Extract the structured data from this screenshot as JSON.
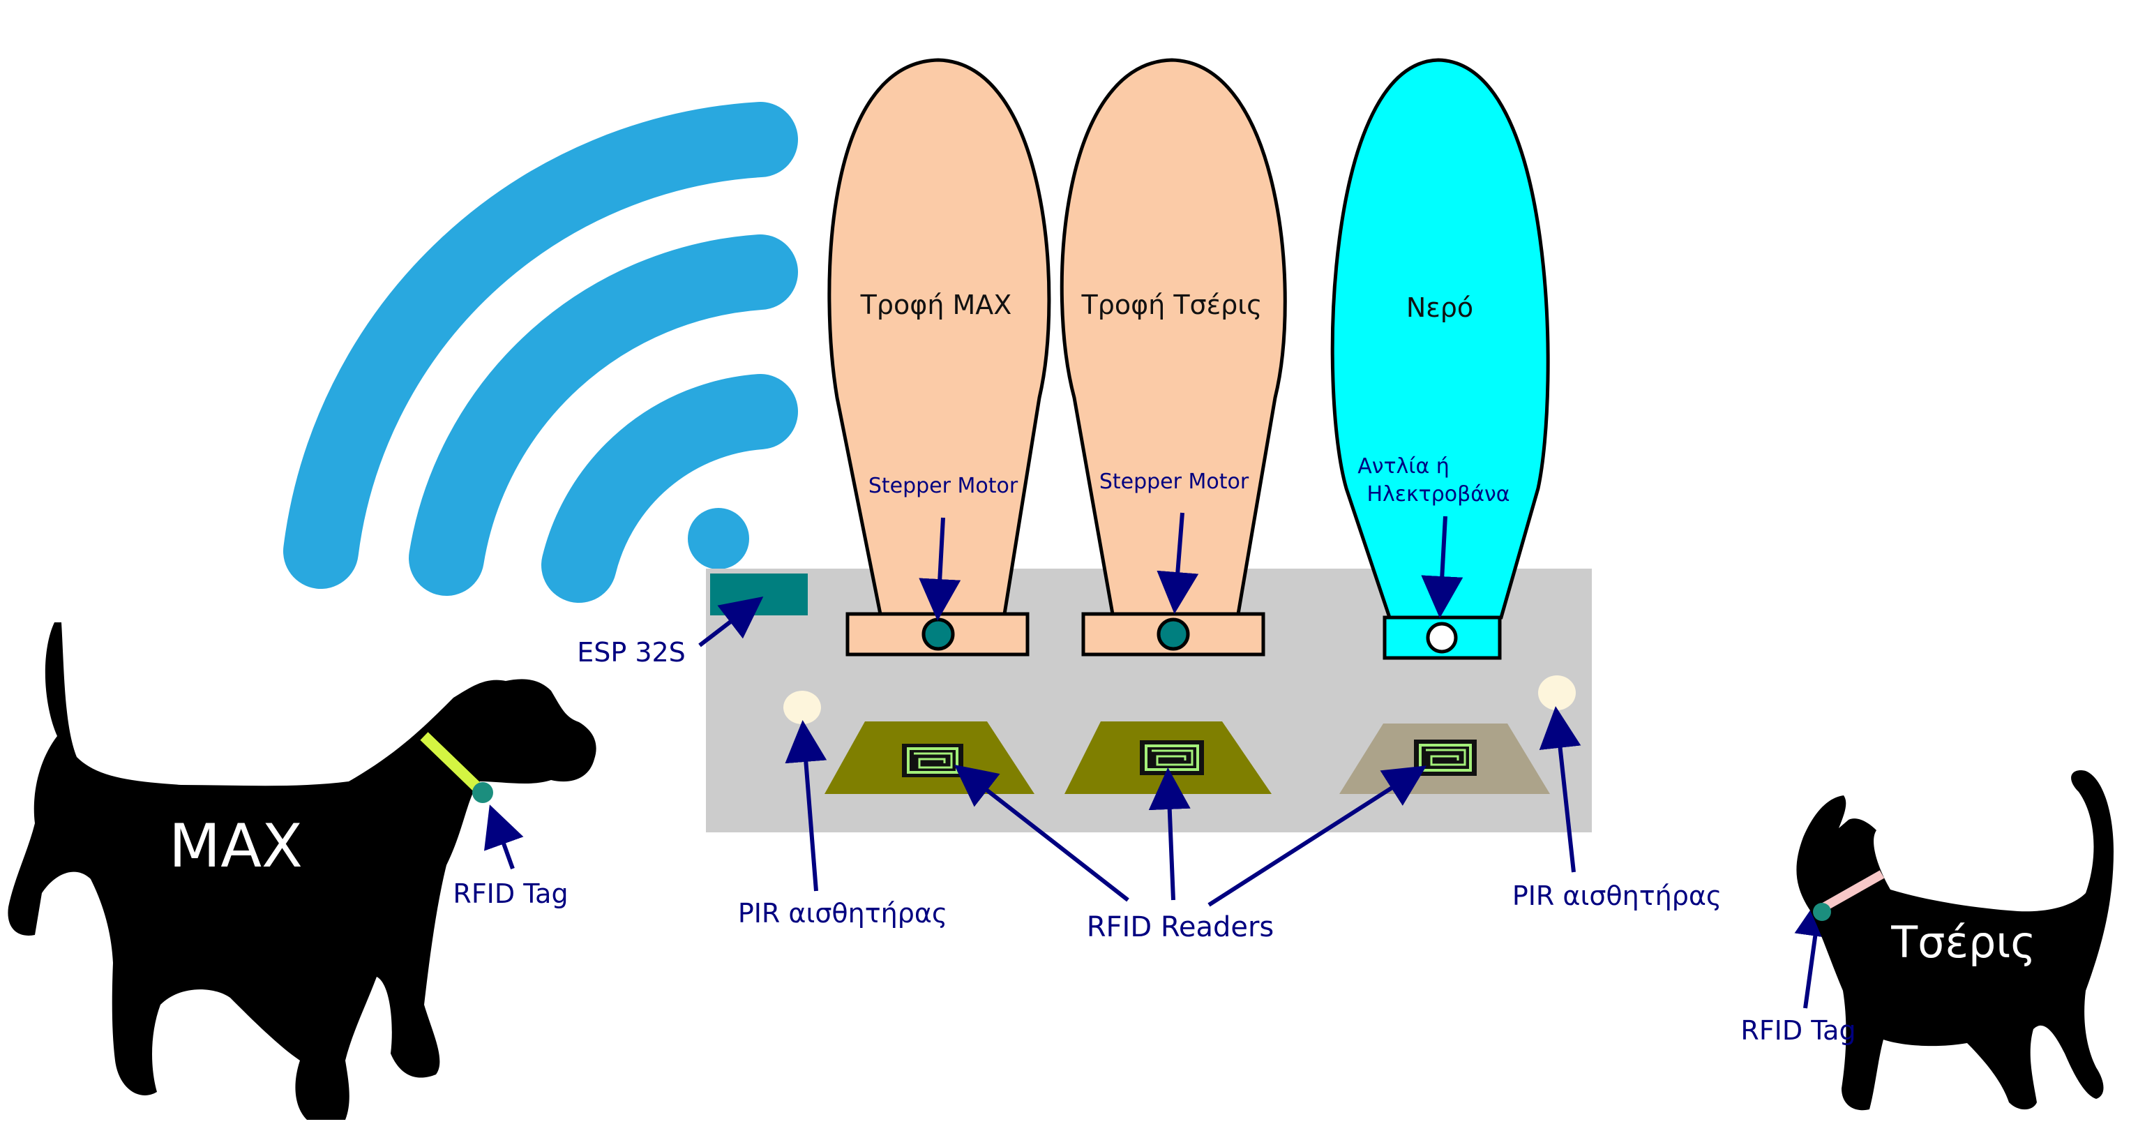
{
  "colors": {
    "wifi": "#29a8df",
    "base": "#cccccc",
    "food_hopper": "#fbcba7",
    "water_hopper": "#00ffff",
    "esp": "#007f7f",
    "rfid_pad": "#7f7f00",
    "rfid_pad_water": "#aca38a",
    "pir": "#fdf5dc",
    "arrow": "#000080",
    "dog_collar": "#d4f542",
    "cat_collar": "#f8c8c8"
  },
  "hoppers": [
    {
      "label": "Τροφή MAX",
      "actuator": "Stepper Motor"
    },
    {
      "label": "Τροφή Τσέρις",
      "actuator": "Stepper Motor"
    },
    {
      "label": "Νερό",
      "actuator_line1": "Αντλία ή",
      "actuator_line2": "Ηλεκτροβάνα"
    }
  ],
  "labels": {
    "esp": "ESP 32S",
    "pir_left": "PIR αισθητήρας",
    "pir_right": "PIR αισθητήρας",
    "rfid_readers": "RFID Readers",
    "rfid_tag_dog": "RFID Tag",
    "rfid_tag_cat": "RFID Tag"
  },
  "animals": {
    "dog": {
      "name": "MAX"
    },
    "cat": {
      "name": "Τσέρις"
    }
  }
}
